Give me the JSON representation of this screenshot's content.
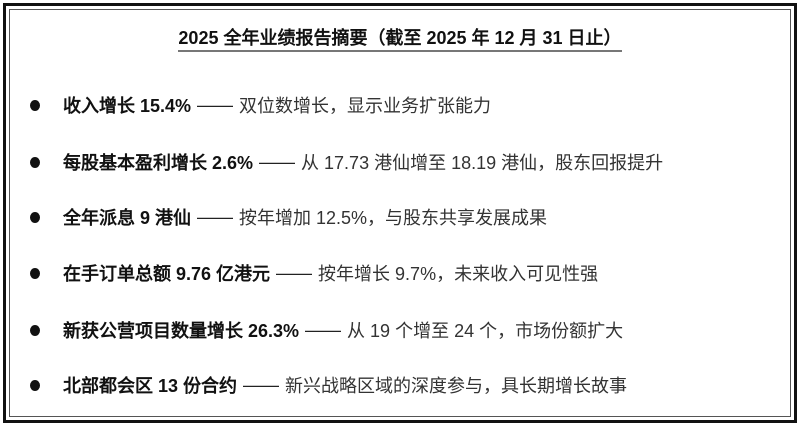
{
  "title": "2025 全年业绩报告摘要（截至 2025 年 12 月 31 日止）",
  "items": [
    {
      "highlight": "收入增长 15.4%",
      "separator": "——",
      "detail": "双位数增长，显示业务扩张能力"
    },
    {
      "highlight": "每股基本盈利增长 2.6%",
      "separator": "——",
      "detail": "从 17.73 港仙增至 18.19 港仙，股东回报提升"
    },
    {
      "highlight": "全年派息 9 港仙",
      "separator": "——",
      "detail": "按年增加 12.5%，与股东共享发展成果"
    },
    {
      "highlight": "在手订单总额 9.76 亿港元",
      "separator": "——",
      "detail": "按年增长 9.7%，未来收入可见性强"
    },
    {
      "highlight": "新获公营项目数量增长 26.3%",
      "separator": "——",
      "detail": "从 19 个增至 24 个，市场份额扩大"
    },
    {
      "highlight": "北部都会区 13 份合约",
      "separator": "——",
      "detail": "新兴战略区域的深度参与，具长期增长故事"
    }
  ]
}
